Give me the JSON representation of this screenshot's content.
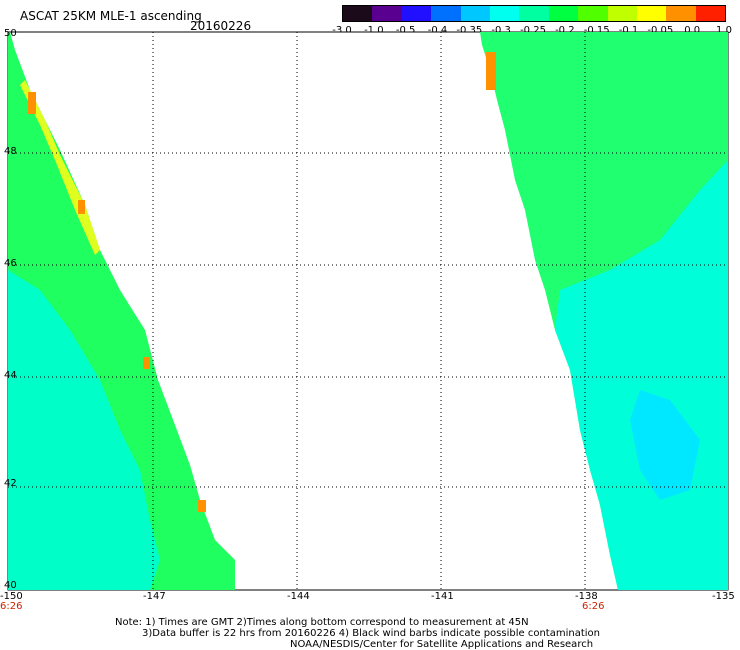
{
  "header": {
    "title": "ASCAT 25KM MLE-1 ascending",
    "date": "20160226"
  },
  "legend": {
    "labels": [
      "-3.0",
      "-1.0",
      "-0.5",
      "-0.4",
      "-0.35",
      "-0.3",
      "-0.25",
      "-0.2",
      "-0.15",
      "-0.1",
      "-0.05",
      "0.0",
      "1.0"
    ],
    "colors": [
      "#1a0a1a",
      "#5a0090",
      "#2010ff",
      "#0070ff",
      "#00c8ff",
      "#00ffee",
      "#00ffa0",
      "#00ff40",
      "#50ff00",
      "#c0ff00",
      "#ffff00",
      "#ff9000",
      "#ff2000"
    ]
  },
  "axes": {
    "lon_labels": [
      "-150",
      "-147",
      "-144",
      "-141",
      "-138",
      "-135"
    ],
    "lat_labels": [
      "40",
      "42",
      "44",
      "46",
      "48",
      "50"
    ],
    "time_labels": [
      "6:26",
      "6:26"
    ]
  },
  "footer": {
    "line1": "Note: 1) Times are GMT 2)Times along bottom correspond to measurement at 45N",
    "line2": "3)Data buffer is 22 hrs from 20160226 4) Black wind barbs indicate possible contamination",
    "line3": "NOAA/NESDIS/Center for Satellite Applications and Research"
  }
}
